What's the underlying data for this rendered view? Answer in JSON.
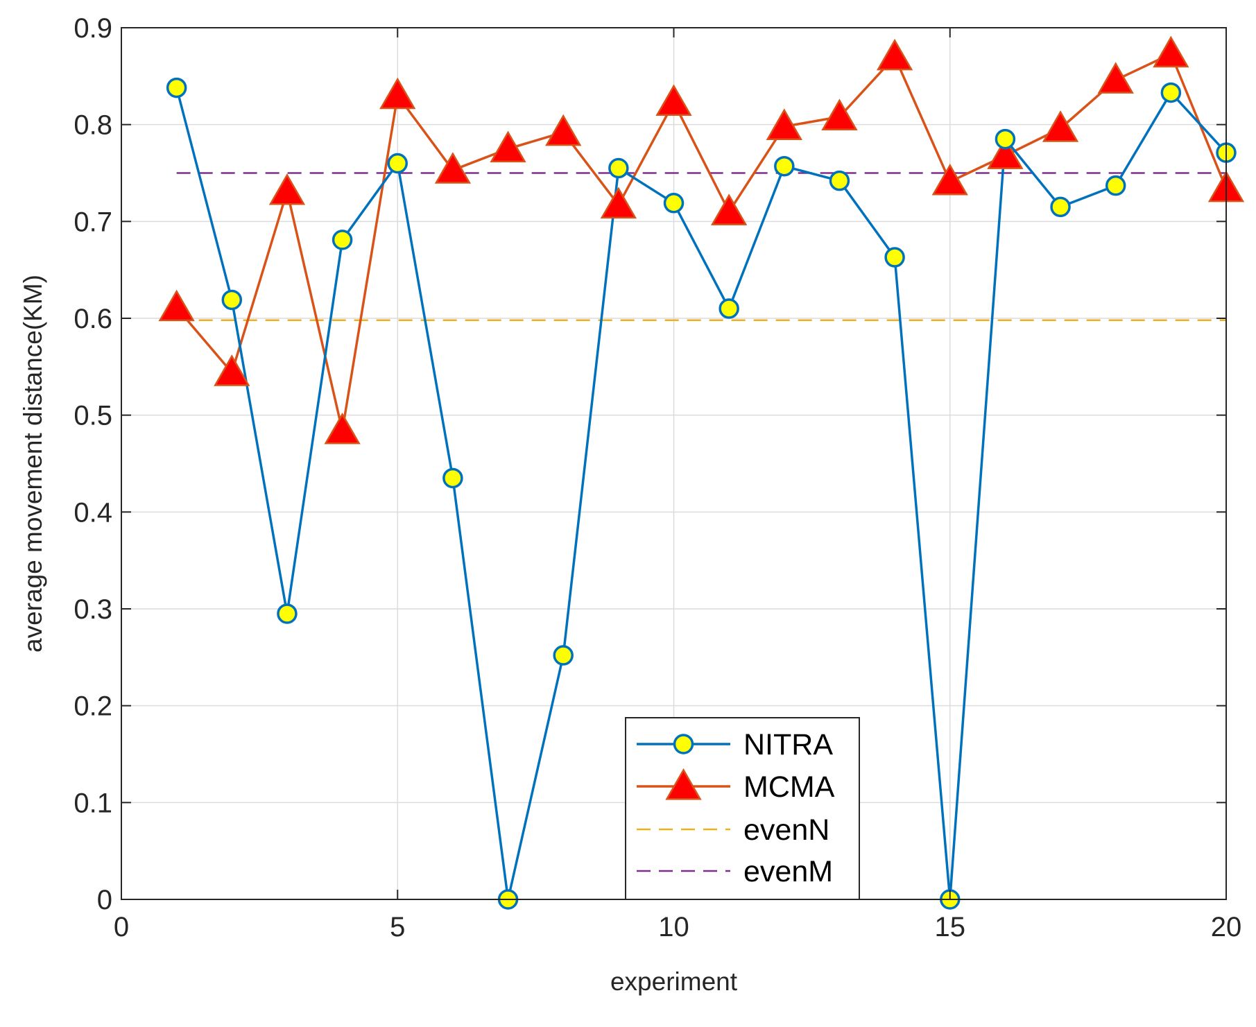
{
  "chart_data": {
    "type": "line",
    "title": "",
    "xlabel": "experiment",
    "ylabel": "average movement distance(KM)",
    "xlim": [
      0,
      20
    ],
    "ylim": [
      0,
      0.9
    ],
    "grid": true,
    "xticks": [
      0,
      5,
      10,
      15,
      20
    ],
    "xtick_labels": [
      "0",
      "5",
      "10",
      "15",
      "20"
    ],
    "yticks": [
      0,
      0.1,
      0.2,
      0.3,
      0.4,
      0.5,
      0.6,
      0.7,
      0.8,
      0.9
    ],
    "ytick_labels": [
      "0",
      "0.1",
      "0.2",
      "0.3",
      "0.4",
      "0.5",
      "0.6",
      "0.7",
      "0.8",
      "0.9"
    ],
    "x": [
      1,
      2,
      3,
      4,
      5,
      6,
      7,
      8,
      9,
      10,
      11,
      12,
      13,
      14,
      15,
      16,
      17,
      18,
      19,
      20
    ],
    "series": [
      {
        "name": "NITRA",
        "color": "#0072BD",
        "marker": "circle",
        "marker_fill": "#FFFF00",
        "values": [
          0.838,
          0.619,
          0.295,
          0.681,
          0.76,
          0.435,
          0.0,
          0.252,
          0.755,
          0.719,
          0.61,
          0.757,
          0.742,
          0.663,
          0.0,
          0.785,
          0.715,
          0.737,
          0.833,
          0.771
        ]
      },
      {
        "name": "MCMA",
        "color": "#D95319",
        "marker": "triangle",
        "marker_fill": "#FF0000",
        "values": [
          0.611,
          0.544,
          0.731,
          0.484,
          0.83,
          0.753,
          0.775,
          0.792,
          0.717,
          0.823,
          0.71,
          0.798,
          0.808,
          0.87,
          0.741,
          0.768,
          0.796,
          0.846,
          0.873,
          0.734
        ]
      }
    ],
    "reference_lines": [
      {
        "name": "evenN",
        "value": 0.598,
        "color": "#EDB120",
        "style": "dashed"
      },
      {
        "name": "evenM",
        "value": 0.75,
        "color": "#7E2F8E",
        "style": "dashed"
      }
    ],
    "legend_position": "bottom-center",
    "legend_entries": [
      "NITRA",
      "MCMA",
      "evenN",
      "evenM"
    ]
  }
}
